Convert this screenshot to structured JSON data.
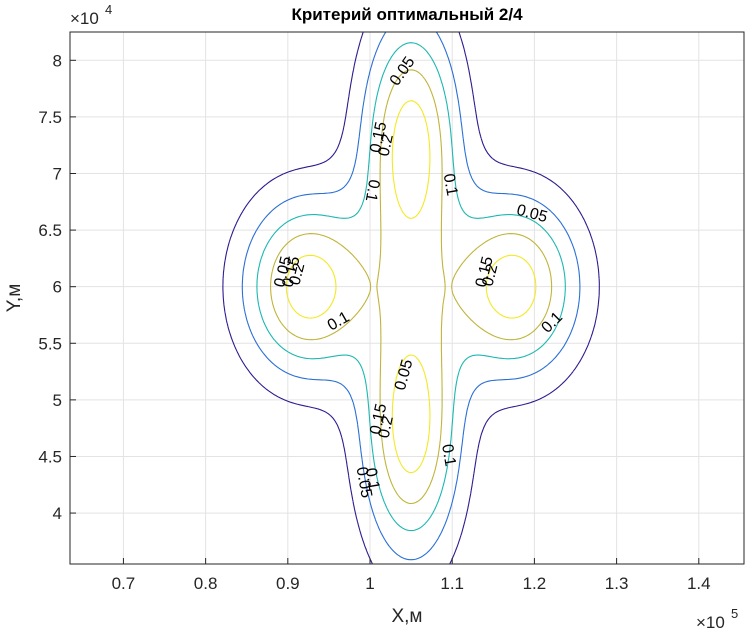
{
  "chart_data": {
    "type": "contour",
    "title": "Критерий оптимальный 2/4",
    "xlabel": "X,м",
    "ylabel": "Y,м",
    "x_exponent": {
      "base": "×10",
      "power": "5"
    },
    "y_exponent": {
      "base": "×10",
      "power": "4"
    },
    "xlim": [
      63500,
      145500
    ],
    "ylim": [
      35500,
      82500
    ],
    "xticks": [
      70000,
      80000,
      90000,
      100000,
      110000,
      120000,
      130000,
      140000
    ],
    "xtick_labels": [
      "0.7",
      "0.8",
      "0.9",
      "1",
      "1.1",
      "1.2",
      "1.3",
      "1.4"
    ],
    "yticks": [
      40000,
      45000,
      50000,
      55000,
      60000,
      65000,
      70000,
      75000,
      80000
    ],
    "ytick_labels": [
      "4",
      "4.5",
      "5",
      "5.5",
      "6",
      "6.5",
      "7",
      "7.5",
      "8"
    ],
    "grid": true,
    "levels": [
      0.05,
      0.1,
      0.15,
      0.2,
      0.25
    ],
    "level_colors": [
      "#2f1a8f",
      "#2a6fd6",
      "#1cb7b0",
      "#c0b43a",
      "#f4e824"
    ],
    "sources": [
      {
        "x": 105000,
        "y": 72500,
        "sx": 4200,
        "sy": 8100
      },
      {
        "x": 105000,
        "y": 47500,
        "sx": 4200,
        "sy": 8100
      },
      {
        "x": 92500,
        "y": 60000,
        "sx": 5600,
        "sy": 5600
      },
      {
        "x": 117500,
        "y": 60000,
        "sx": 5600,
        "sy": 5600
      }
    ],
    "contour_labels": [
      {
        "text": "0.05",
        "x": 104000,
        "y": 79000,
        "angle": -55
      },
      {
        "text": "0.15",
        "x": 101100,
        "y": 73200,
        "angle": -78
      },
      {
        "text": "0.2",
        "x": 102000,
        "y": 72500,
        "angle": -78
      },
      {
        "text": "0.1",
        "x": 109700,
        "y": 69000,
        "angle": 80
      },
      {
        "text": "0.1",
        "x": 100200,
        "y": 68500,
        "angle": 100
      },
      {
        "text": "0.05",
        "x": 119700,
        "y": 66400,
        "angle": 15
      },
      {
        "text": "0.05",
        "x": 89500,
        "y": 61300,
        "angle": -76
      },
      {
        "text": "0.15",
        "x": 90500,
        "y": 61300,
        "angle": -76
      },
      {
        "text": "0.2",
        "x": 91200,
        "y": 61100,
        "angle": -76
      },
      {
        "text": "0.15",
        "x": 114000,
        "y": 61300,
        "angle": -76
      },
      {
        "text": "0.2",
        "x": 114700,
        "y": 61000,
        "angle": -76
      },
      {
        "text": "0.1",
        "x": 96200,
        "y": 56900,
        "angle": -30
      },
      {
        "text": "0.1",
        "x": 122200,
        "y": 56800,
        "angle": -45
      },
      {
        "text": "0.05",
        "x": 104200,
        "y": 52200,
        "angle": -75
      },
      {
        "text": "0.15",
        "x": 101100,
        "y": 48300,
        "angle": -78
      },
      {
        "text": "0.2",
        "x": 102000,
        "y": 47600,
        "angle": -78
      },
      {
        "text": "0.1",
        "x": 109500,
        "y": 45100,
        "angle": 80
      },
      {
        "text": "0.1",
        "x": 100200,
        "y": 43000,
        "angle": 80
      },
      {
        "text": "0.05",
        "x": 99200,
        "y": 42700,
        "angle": 80
      }
    ]
  }
}
